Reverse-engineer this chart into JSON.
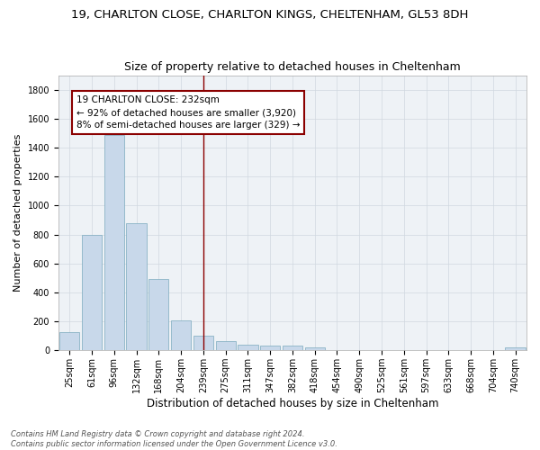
{
  "title_line1": "19, CHARLTON CLOSE, CHARLTON KINGS, CHELTENHAM, GL53 8DH",
  "title_line2": "Size of property relative to detached houses in Cheltenham",
  "xlabel": "Distribution of detached houses by size in Cheltenham",
  "ylabel": "Number of detached properties",
  "footer_line1": "Contains HM Land Registry data © Crown copyright and database right 2024.",
  "footer_line2": "Contains public sector information licensed under the Open Government Licence v3.0.",
  "bar_labels": [
    "25sqm",
    "61sqm",
    "96sqm",
    "132sqm",
    "168sqm",
    "204sqm",
    "239sqm",
    "275sqm",
    "311sqm",
    "347sqm",
    "382sqm",
    "418sqm",
    "454sqm",
    "490sqm",
    "525sqm",
    "561sqm",
    "597sqm",
    "633sqm",
    "668sqm",
    "704sqm",
    "740sqm"
  ],
  "bar_values": [
    125,
    800,
    1490,
    880,
    490,
    205,
    100,
    65,
    40,
    35,
    30,
    20,
    5,
    3,
    2,
    1,
    1,
    1,
    1,
    1,
    20
  ],
  "bar_color": "#c8d8ea",
  "bar_edgecolor": "#7aaabe",
  "vline_x": 6,
  "vline_color": "#8b0000",
  "annotation_text": "19 CHARLTON CLOSE: 232sqm\n← 92% of detached houses are smaller (3,920)\n8% of semi-detached houses are larger (329) →",
  "annotation_box_color": "#8b0000",
  "ylim": [
    0,
    1900
  ],
  "yticks": [
    0,
    200,
    400,
    600,
    800,
    1000,
    1200,
    1400,
    1600,
    1800
  ],
  "grid_color": "#d0d8e0",
  "background_color": "#eef2f6",
  "title1_fontsize": 9.5,
  "title2_fontsize": 9.0,
  "xlabel_fontsize": 8.5,
  "ylabel_fontsize": 8.0,
  "tick_fontsize": 7.0,
  "annotation_fontsize": 7.5,
  "footer_fontsize": 6.0
}
